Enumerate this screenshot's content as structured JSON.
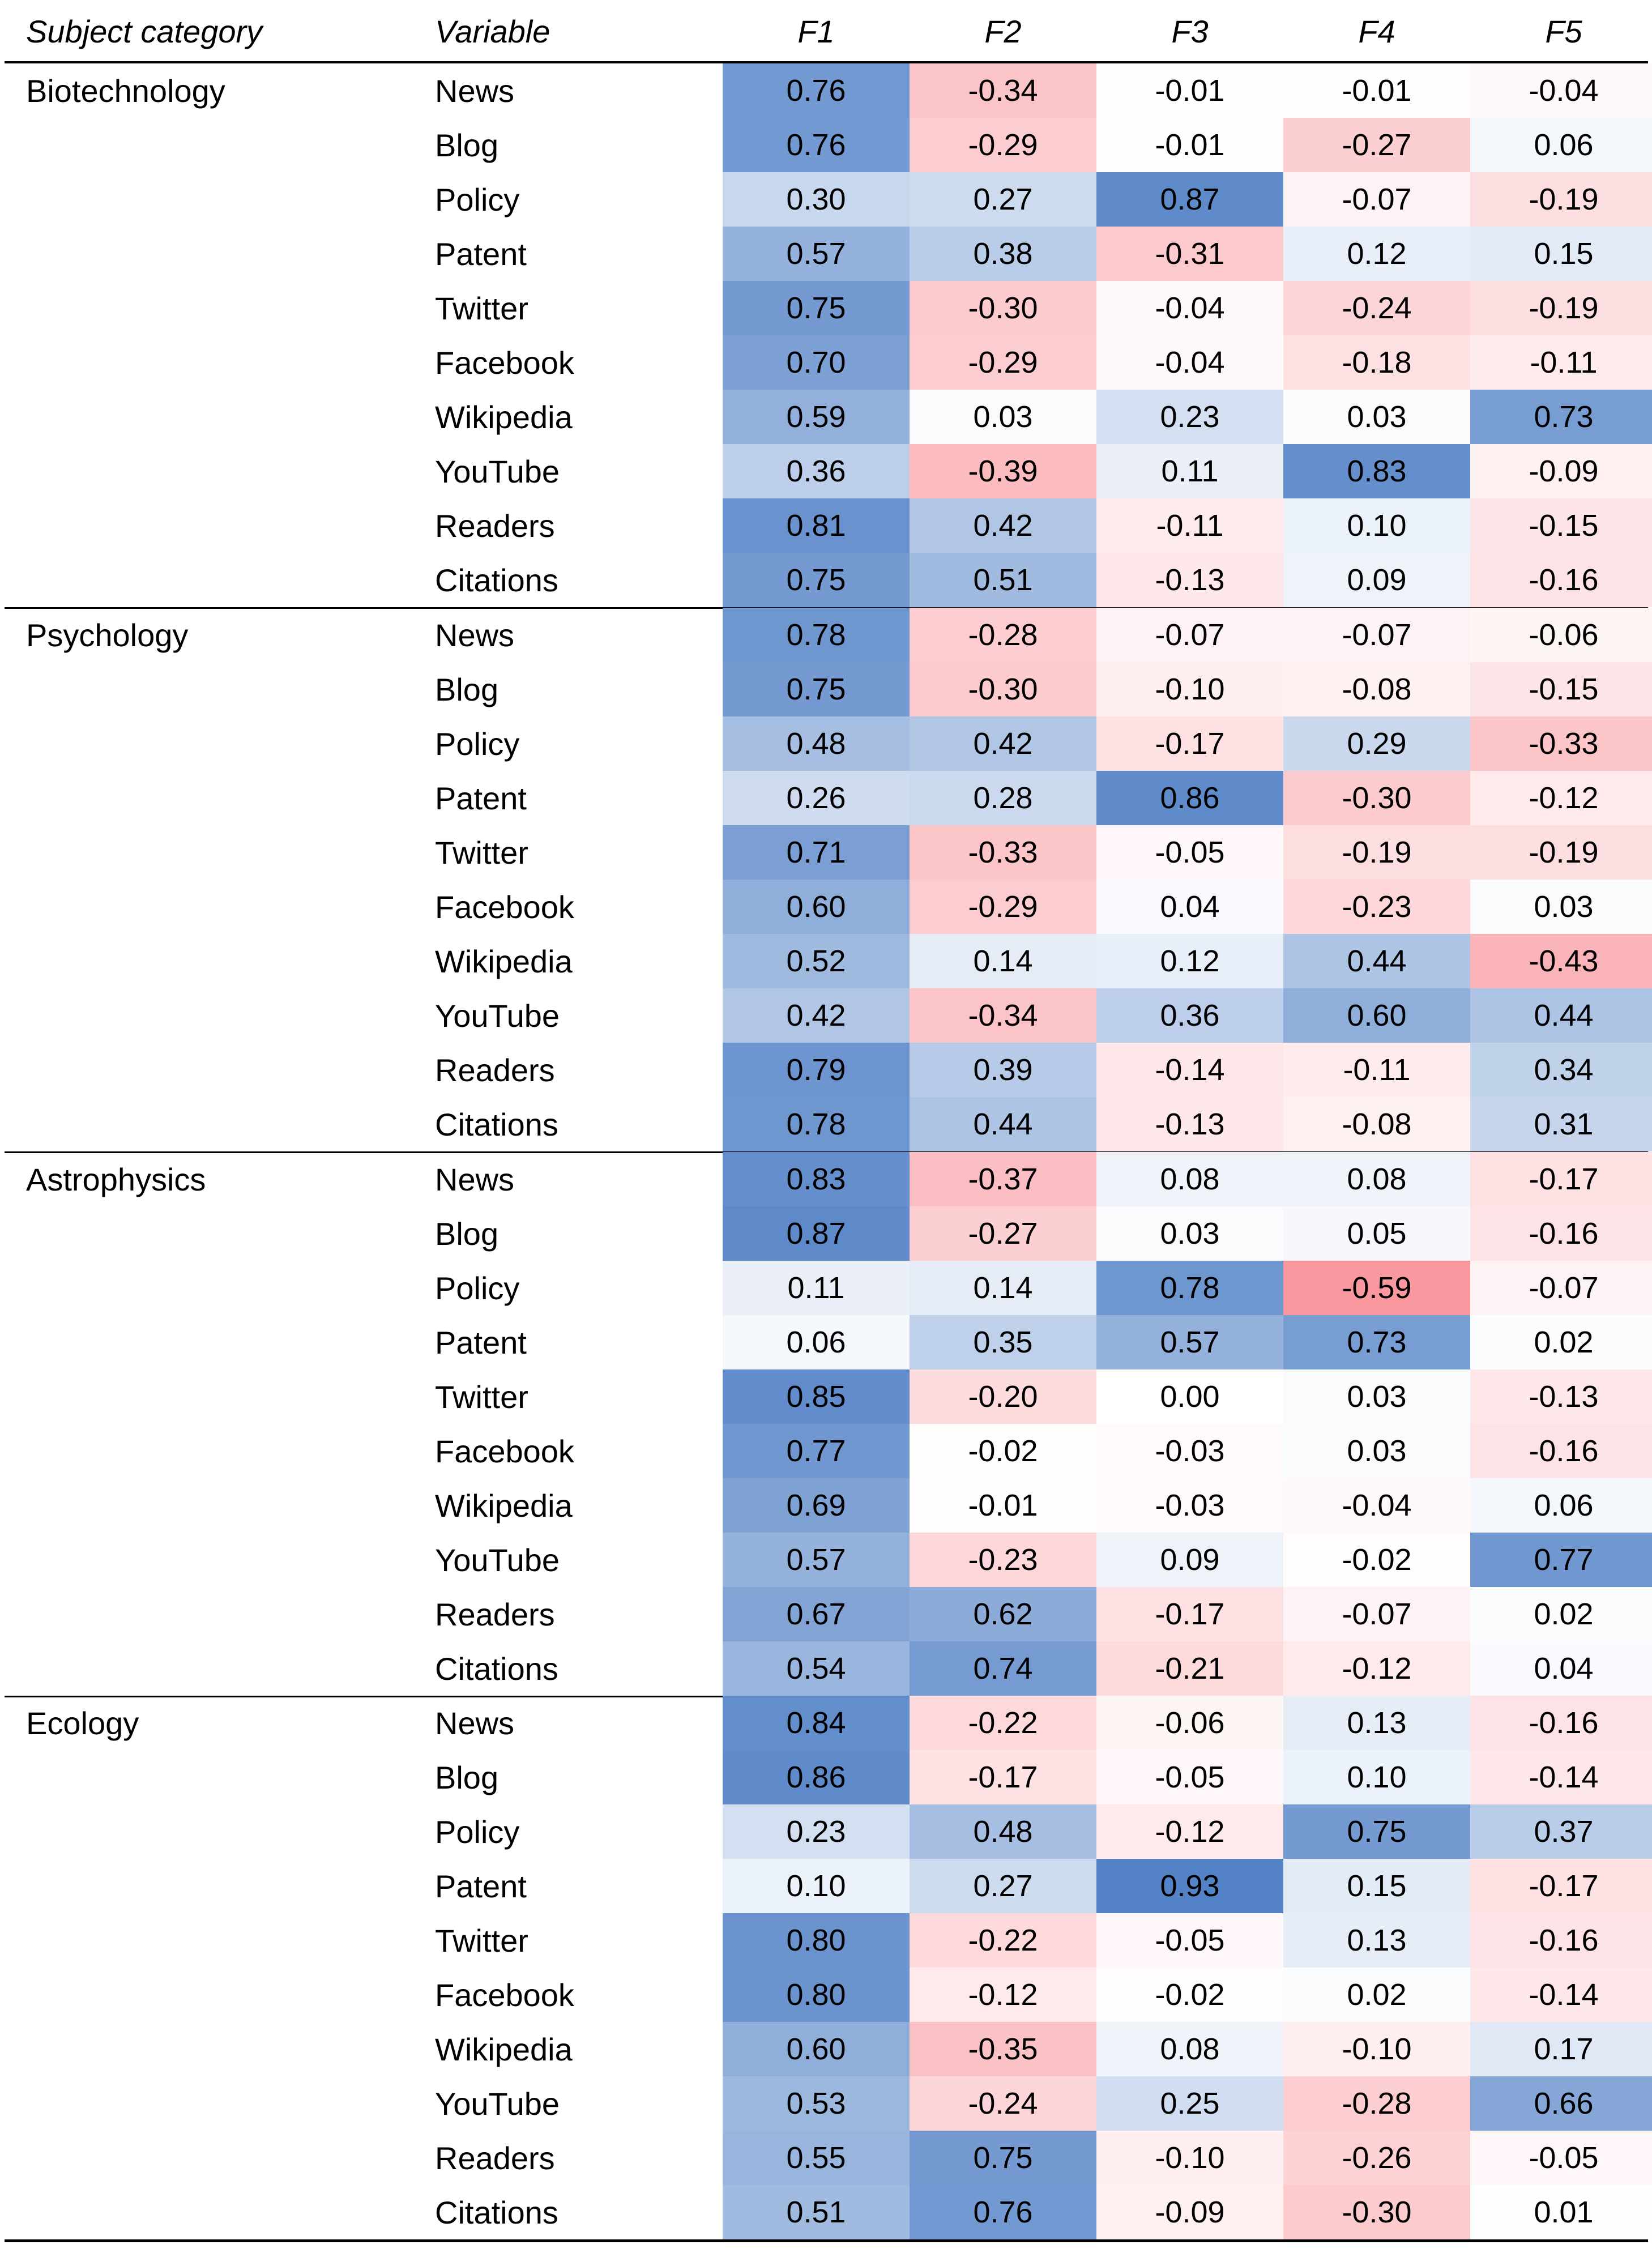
{
  "headers": [
    "Subject category",
    "Variable",
    "F1",
    "F2",
    "F3",
    "F4",
    "F5"
  ],
  "variables": [
    "News",
    "Blog",
    "Policy",
    "Patent",
    "Twitter",
    "Facebook",
    "Wikipedia",
    "YouTube",
    "Readers",
    "Citations"
  ],
  "colors": {
    "positive": "#4f7fc5",
    "negative": "#f55a64",
    "neutral": "#ffffff",
    "text": "#000000"
  },
  "chart_data": {
    "type": "heatmap",
    "title": "",
    "columns": [
      "F1",
      "F2",
      "F3",
      "F4",
      "F5"
    ],
    "value_range": [
      -1,
      1
    ],
    "groups": [
      {
        "category": "Biotechnology",
        "rows": [
          {
            "variable": "News",
            "values": [
              "0.76",
              "-0.34",
              "-0.01",
              "-0.01",
              "-0.04"
            ]
          },
          {
            "variable": "Blog",
            "values": [
              "0.76",
              "-0.29",
              "-0.01",
              "-0.27",
              "0.06"
            ]
          },
          {
            "variable": "Policy",
            "values": [
              "0.30",
              "0.27",
              "0.87",
              "-0.07",
              "-0.19"
            ]
          },
          {
            "variable": "Patent",
            "values": [
              "0.57",
              "0.38",
              "-0.31",
              "0.12",
              "0.15"
            ]
          },
          {
            "variable": "Twitter",
            "values": [
              "0.75",
              "-0.30",
              "-0.04",
              "-0.24",
              "-0.19"
            ]
          },
          {
            "variable": "Facebook",
            "values": [
              "0.70",
              "-0.29",
              "-0.04",
              "-0.18",
              "-0.11"
            ]
          },
          {
            "variable": "Wikipedia",
            "values": [
              "0.59",
              "0.03",
              "0.23",
              "0.03",
              "0.73"
            ]
          },
          {
            "variable": "YouTube",
            "values": [
              "0.36",
              "-0.39",
              "0.11",
              "0.83",
              "-0.09"
            ]
          },
          {
            "variable": "Readers",
            "values": [
              "0.81",
              "0.42",
              "-0.11",
              "0.10",
              "-0.15"
            ]
          },
          {
            "variable": "Citations",
            "values": [
              "0.75",
              "0.51",
              "-0.13",
              "0.09",
              "-0.16"
            ]
          }
        ]
      },
      {
        "category": "Psychology",
        "rows": [
          {
            "variable": "News",
            "values": [
              "0.78",
              "-0.28",
              "-0.07",
              "-0.07",
              "-0.06"
            ]
          },
          {
            "variable": "Blog",
            "values": [
              "0.75",
              "-0.30",
              "-0.10",
              "-0.08",
              "-0.15"
            ]
          },
          {
            "variable": "Policy",
            "values": [
              "0.48",
              "0.42",
              "-0.17",
              "0.29",
              "-0.33"
            ]
          },
          {
            "variable": "Patent",
            "values": [
              "0.26",
              "0.28",
              "0.86",
              "-0.30",
              "-0.12"
            ]
          },
          {
            "variable": "Twitter",
            "values": [
              "0.71",
              "-0.33",
              "-0.05",
              "-0.19",
              "-0.19"
            ]
          },
          {
            "variable": "Facebook",
            "values": [
              "0.60",
              "-0.29",
              "0.04",
              "-0.23",
              "0.03"
            ]
          },
          {
            "variable": "Wikipedia",
            "values": [
              "0.52",
              "0.14",
              "0.12",
              "0.44",
              "-0.43"
            ]
          },
          {
            "variable": "YouTube",
            "values": [
              "0.42",
              "-0.34",
              "0.36",
              "0.60",
              "0.44"
            ]
          },
          {
            "variable": "Readers",
            "values": [
              "0.79",
              "0.39",
              "-0.14",
              "-0.11",
              "0.34"
            ]
          },
          {
            "variable": "Citations",
            "values": [
              "0.78",
              "0.44",
              "-0.13",
              "-0.08",
              "0.31"
            ]
          }
        ]
      },
      {
        "category": "Astrophysics",
        "rows": [
          {
            "variable": "News",
            "values": [
              "0.83",
              "-0.37",
              "0.08",
              "0.08",
              "-0.17"
            ]
          },
          {
            "variable": "Blog",
            "values": [
              "0.87",
              "-0.27",
              "0.03",
              "0.05",
              "-0.16"
            ]
          },
          {
            "variable": "Policy",
            "values": [
              "0.11",
              "0.14",
              "0.78",
              "-0.59",
              "-0.07"
            ]
          },
          {
            "variable": "Patent",
            "values": [
              "0.06",
              "0.35",
              "0.57",
              "0.73",
              "0.02"
            ]
          },
          {
            "variable": "Twitter",
            "values": [
              "0.85",
              "-0.20",
              "0.00",
              "0.03",
              "-0.13"
            ]
          },
          {
            "variable": "Facebook",
            "values": [
              "0.77",
              "-0.02",
              "-0.03",
              "0.03",
              "-0.16"
            ]
          },
          {
            "variable": "Wikipedia",
            "values": [
              "0.69",
              "-0.01",
              "-0.03",
              "-0.04",
              "0.06"
            ]
          },
          {
            "variable": "YouTube",
            "values": [
              "0.57",
              "-0.23",
              "0.09",
              "-0.02",
              "0.77"
            ]
          },
          {
            "variable": "Readers",
            "values": [
              "0.67",
              "0.62",
              "-0.17",
              "-0.07",
              "0.02"
            ]
          },
          {
            "variable": "Citations",
            "values": [
              "0.54",
              "0.74",
              "-0.21",
              "-0.12",
              "0.04"
            ]
          }
        ]
      },
      {
        "category": "Ecology",
        "rows": [
          {
            "variable": "News",
            "values": [
              "0.84",
              "-0.22",
              "-0.06",
              "0.13",
              "-0.16"
            ]
          },
          {
            "variable": "Blog",
            "values": [
              "0.86",
              "-0.17",
              "-0.05",
              "0.10",
              "-0.14"
            ]
          },
          {
            "variable": "Policy",
            "values": [
              "0.23",
              "0.48",
              "-0.12",
              "0.75",
              "0.37"
            ]
          },
          {
            "variable": "Patent",
            "values": [
              "0.10",
              "0.27",
              "0.93",
              "0.15",
              "-0.17"
            ]
          },
          {
            "variable": "Twitter",
            "values": [
              "0.80",
              "-0.22",
              "-0.05",
              "0.13",
              "-0.16"
            ]
          },
          {
            "variable": "Facebook",
            "values": [
              "0.80",
              "-0.12",
              "-0.02",
              "0.02",
              "-0.14"
            ]
          },
          {
            "variable": "Wikipedia",
            "values": [
              "0.60",
              "-0.35",
              "0.08",
              "-0.10",
              "0.17"
            ]
          },
          {
            "variable": "YouTube",
            "values": [
              "0.53",
              "-0.24",
              "0.25",
              "-0.28",
              "0.66"
            ]
          },
          {
            "variable": "Readers",
            "values": [
              "0.55",
              "0.75",
              "-0.10",
              "-0.26",
              "-0.05"
            ]
          },
          {
            "variable": "Citations",
            "values": [
              "0.51",
              "0.76",
              "-0.09",
              "-0.30",
              "0.01"
            ]
          }
        ]
      }
    ]
  }
}
